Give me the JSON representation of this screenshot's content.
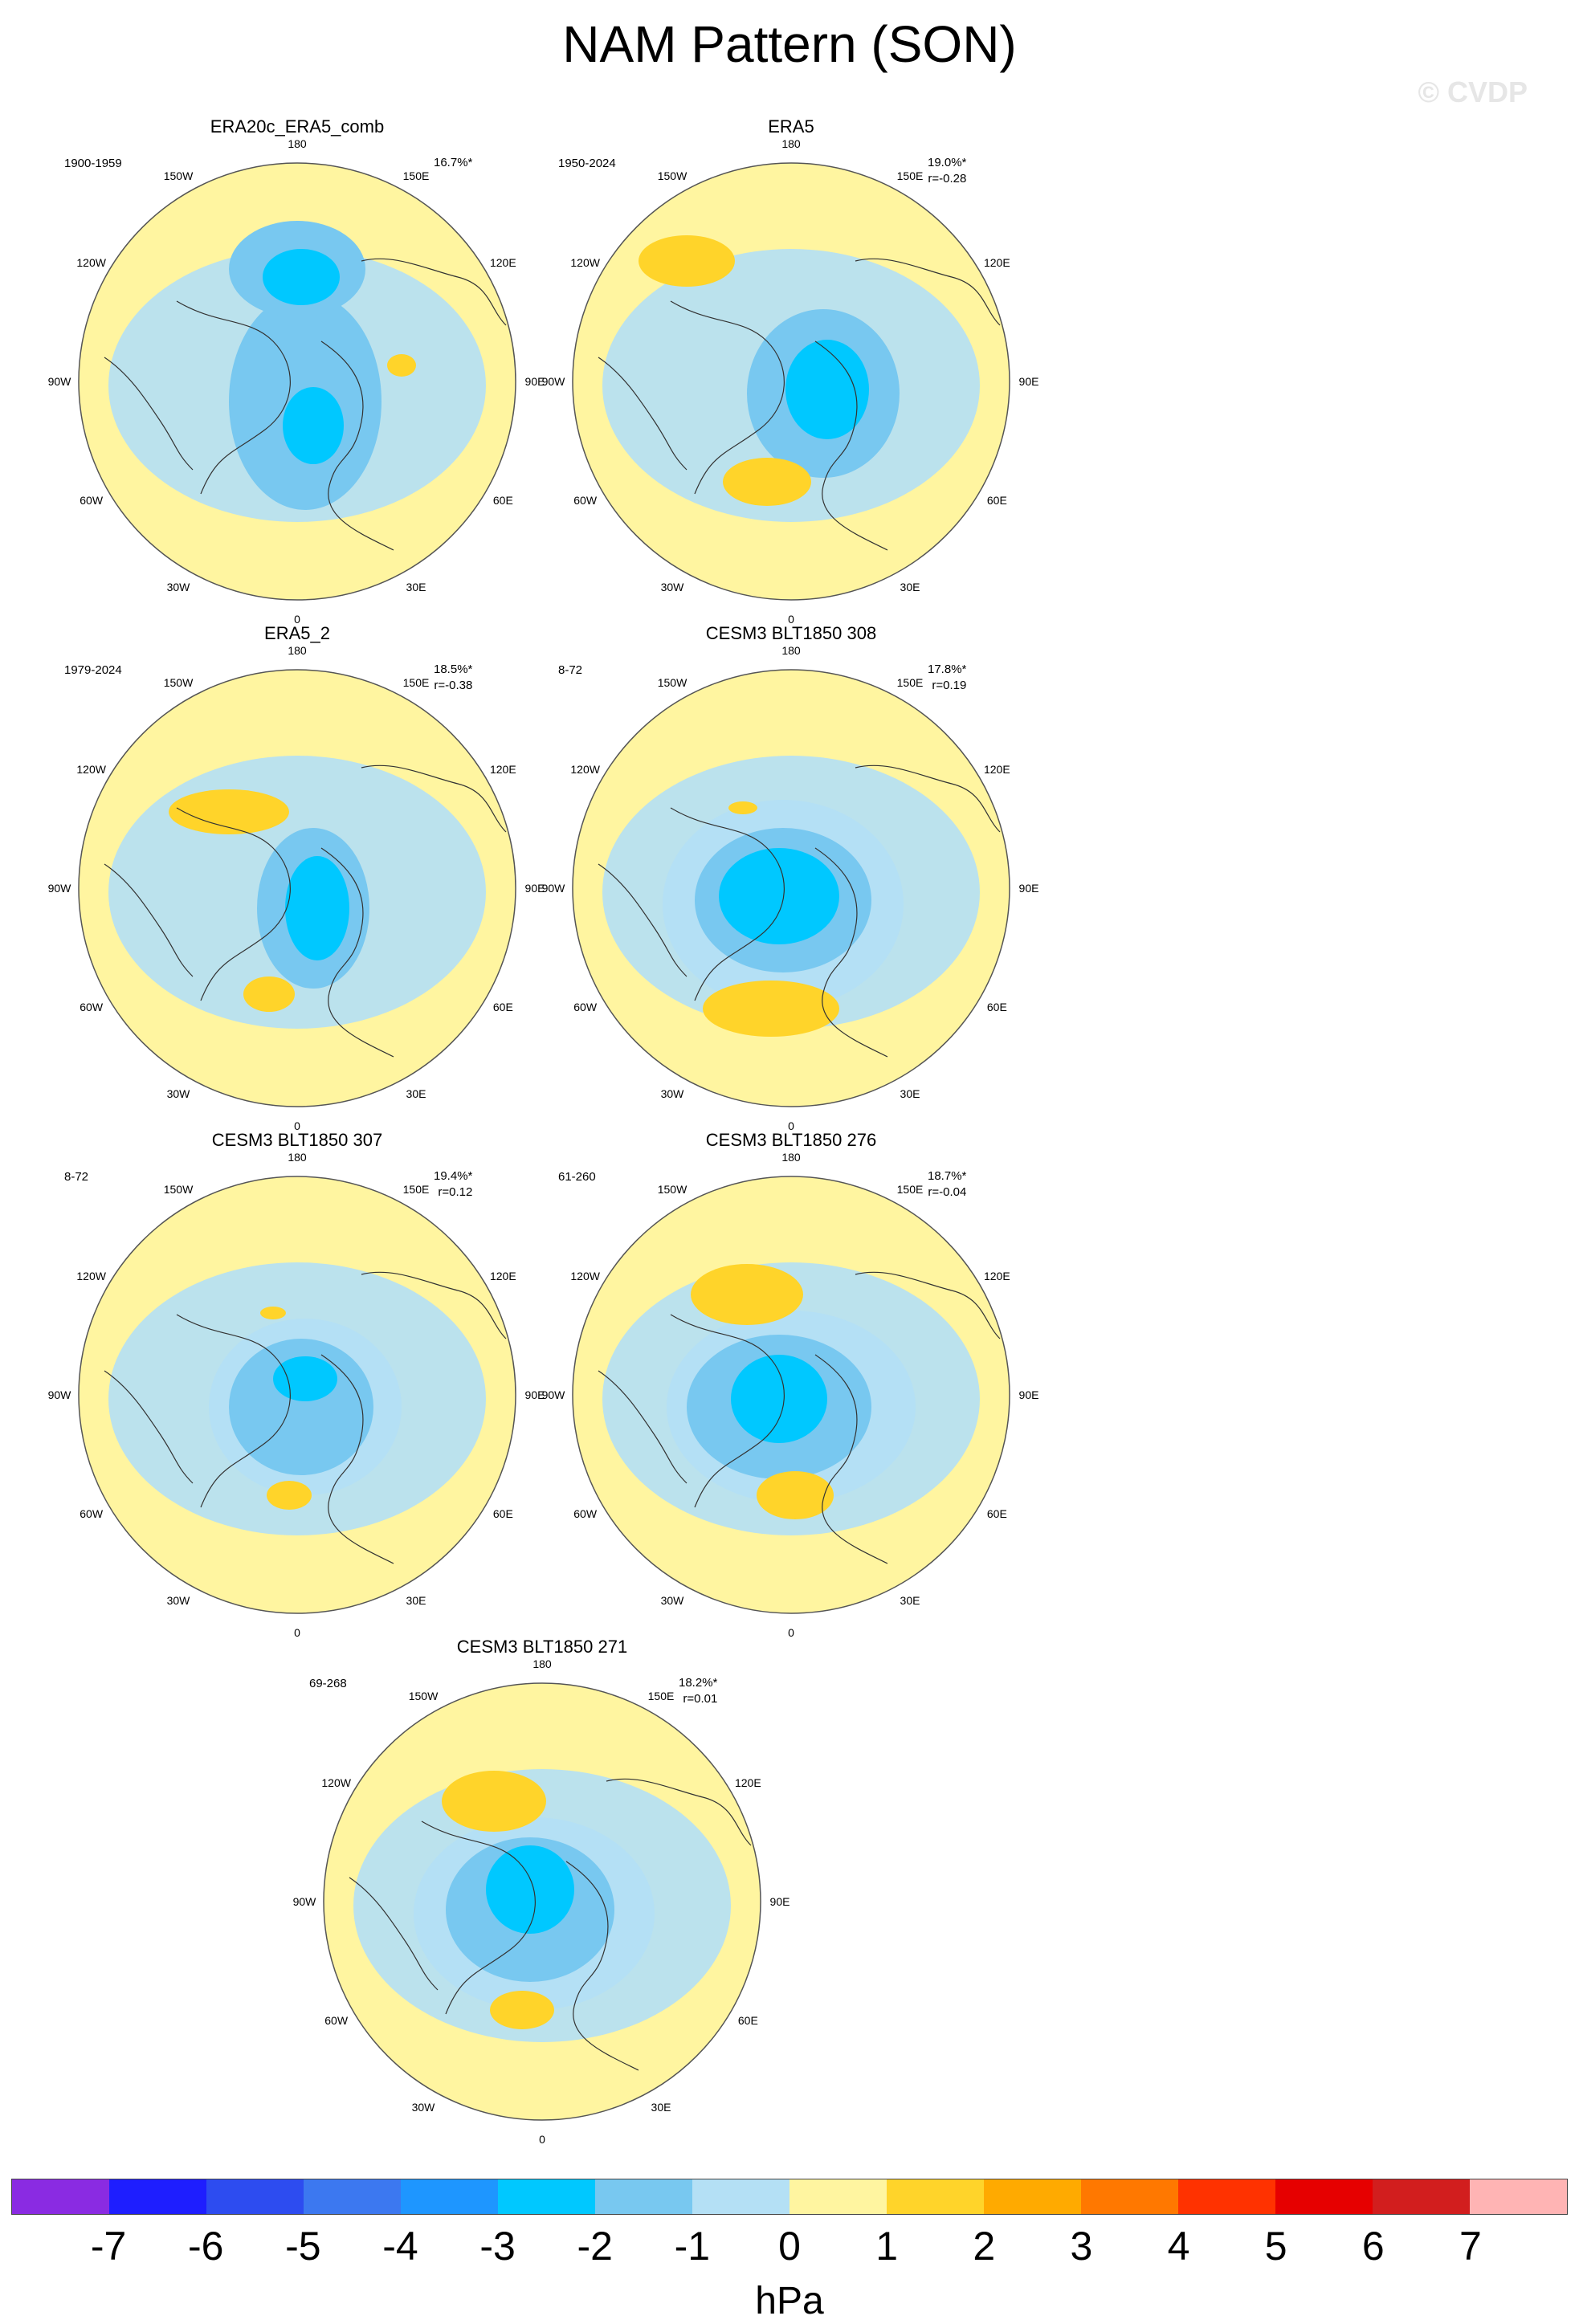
{
  "title": "NAM Pattern (SON)",
  "watermark": "© CVDP",
  "lon_labels": [
    "180",
    "150E",
    "120E",
    "90E",
    "60E",
    "30E",
    "0",
    "30W",
    "60W",
    "90W",
    "120W",
    "150W"
  ],
  "panels": [
    {
      "title": "ERA20c_ERA5_comb",
      "years": "1900-1959",
      "pct": "16.7%*",
      "r": ""
    },
    {
      "title": "ERA5",
      "years": "1950-2024",
      "pct": "19.0%*",
      "r": "r=-0.28"
    },
    {
      "title": "ERA5_2",
      "years": "1979-2024",
      "pct": "18.5%*",
      "r": "r=-0.38"
    },
    {
      "title": "CESM3 BLT1850 308",
      "years": "8-72",
      "pct": "17.8%*",
      "r": "r=0.19"
    },
    {
      "title": "CESM3 BLT1850 307",
      "years": "8-72",
      "pct": "19.4%*",
      "r": "r=0.12"
    },
    {
      "title": "CESM3 BLT1850 276",
      "years": "61-260",
      "pct": "18.7%*",
      "r": "r=-0.04"
    },
    {
      "title": "CESM3 BLT1850 271",
      "years": "69-268",
      "pct": "18.2%*",
      "r": "r=0.01"
    }
  ],
  "colorbar": {
    "unit": "hPa",
    "ticks": [
      "-7",
      "-6",
      "-5",
      "-4",
      "-3",
      "-2",
      "-1",
      "0",
      "1",
      "2",
      "3",
      "4",
      "5",
      "6",
      "7"
    ],
    "colors": [
      "#8a2be2",
      "#1e1eff",
      "#2d4cf0",
      "#3c78f0",
      "#1e96ff",
      "#00c8ff",
      "#78c8f0",
      "#b4e0f5",
      "#fff5a0",
      "#ffd42a",
      "#ffaa00",
      "#ff7800",
      "#ff3200",
      "#e60000",
      "#d21e1e",
      "#ffb4b4"
    ]
  }
}
